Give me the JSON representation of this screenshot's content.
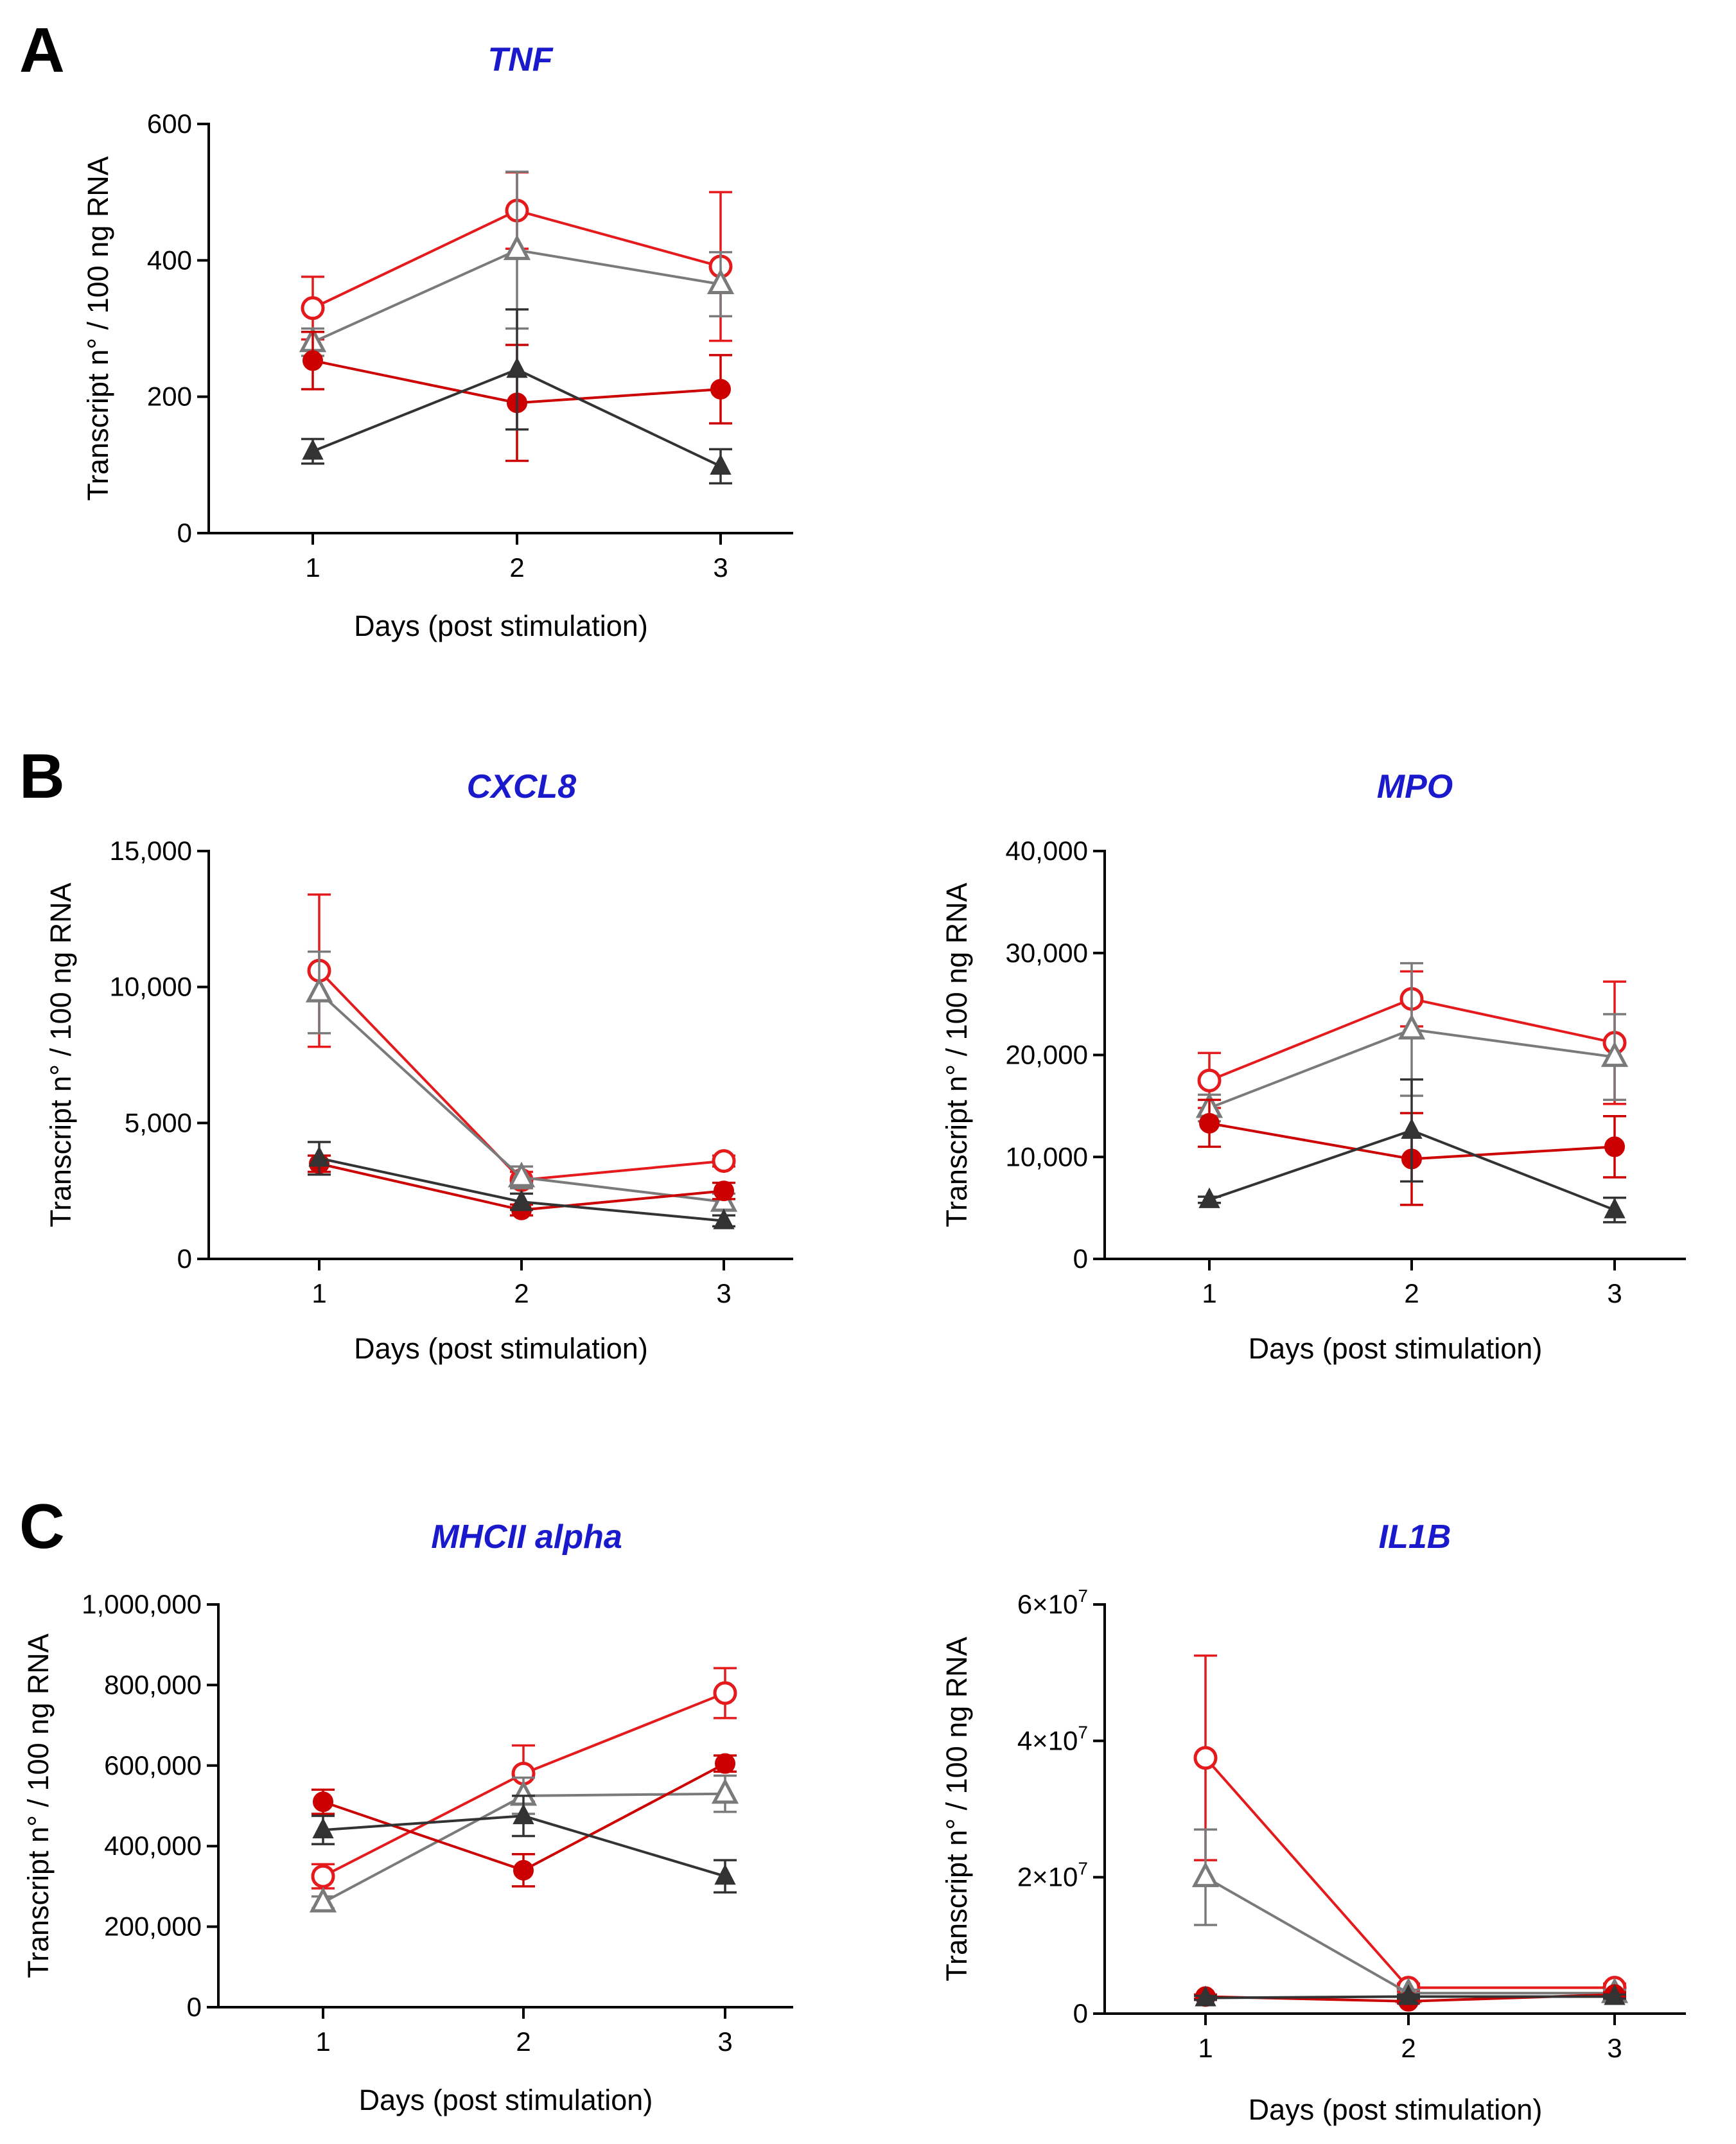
{
  "panels": {
    "A": "A",
    "B": "B",
    "C": "C"
  },
  "colors": {
    "red": "#e41a1c",
    "red_dark": "#cc0000",
    "gray": "#7a7a7a",
    "dark": "#333333"
  },
  "chart_data": [
    {
      "id": "tnf",
      "panel": "A",
      "type": "line",
      "title": "TNF",
      "xlabel": "Days (post stimulation)",
      "ylabel": "Transcript n° / 100 ng RNA",
      "categories": [
        "1",
        "2",
        "3"
      ],
      "ylim": [
        0,
        600
      ],
      "yticks": [
        0,
        200,
        400,
        600
      ],
      "ytick_labels": [
        "0",
        "200",
        "400",
        "600"
      ],
      "series": [
        {
          "name": "red-open-circle",
          "color": "red",
          "marker": "circle-open",
          "values": [
            330,
            473,
            391
          ],
          "errors": [
            46,
            56,
            109
          ]
        },
        {
          "name": "gray-open-triangle",
          "color": "gray",
          "marker": "triangle-open",
          "values": [
            280,
            415,
            365
          ],
          "errors": [
            20,
            115,
            47
          ]
        },
        {
          "name": "red-filled-circle",
          "color": "red_dark",
          "marker": "circle-filled",
          "values": [
            253,
            191,
            211
          ],
          "errors": [
            42,
            85,
            50
          ]
        },
        {
          "name": "dark-filled-triangle",
          "color": "dark",
          "marker": "triangle-filled",
          "values": [
            120,
            240,
            98
          ],
          "errors": [
            18,
            88,
            25
          ]
        }
      ]
    },
    {
      "id": "cxcl8",
      "panel": "B",
      "type": "line",
      "title": "CXCL8",
      "xlabel": "Days (post stimulation)",
      "ylabel": "Transcript n° / 100 ng RNA",
      "categories": [
        "1",
        "2",
        "3"
      ],
      "ylim": [
        0,
        15000
      ],
      "yticks": [
        0,
        5000,
        10000,
        15000
      ],
      "ytick_labels": [
        "0",
        "5,000",
        "10,000",
        "15,000"
      ],
      "series": [
        {
          "name": "red-open-circle",
          "color": "red",
          "marker": "circle-open",
          "values": [
            10600,
            2900,
            3600
          ],
          "errors": [
            2800,
            300,
            200
          ]
        },
        {
          "name": "gray-open-triangle",
          "color": "gray",
          "marker": "triangle-open",
          "values": [
            9800,
            3000,
            2100
          ],
          "errors": [
            1500,
            400,
            300
          ]
        },
        {
          "name": "red-filled-circle",
          "color": "red_dark",
          "marker": "circle-filled",
          "values": [
            3500,
            1800,
            2500
          ],
          "errors": [
            300,
            200,
            300
          ]
        },
        {
          "name": "dark-filled-triangle",
          "color": "dark",
          "marker": "triangle-filled",
          "values": [
            3700,
            2100,
            1400
          ],
          "errors": [
            600,
            300,
            200
          ]
        }
      ]
    },
    {
      "id": "mpo",
      "panel": "B",
      "type": "line",
      "title": "MPO",
      "xlabel": "Days (post stimulation)",
      "ylabel": "Transcript n° / 100 ng RNA",
      "categories": [
        "1",
        "2",
        "3"
      ],
      "ylim": [
        0,
        40000
      ],
      "yticks": [
        0,
        10000,
        20000,
        30000,
        40000
      ],
      "ytick_labels": [
        "0",
        "10,000",
        "20,000",
        "30,000",
        "40,000"
      ],
      "series": [
        {
          "name": "red-open-circle",
          "color": "red",
          "marker": "circle-open",
          "values": [
            17500,
            25500,
            21200
          ],
          "errors": [
            2700,
            2700,
            6000
          ]
        },
        {
          "name": "gray-open-triangle",
          "color": "gray",
          "marker": "triangle-open",
          "values": [
            14800,
            22500,
            19800
          ],
          "errors": [
            1300,
            6500,
            4200
          ]
        },
        {
          "name": "red-filled-circle",
          "color": "red_dark",
          "marker": "circle-filled",
          "values": [
            13300,
            9800,
            11000
          ],
          "errors": [
            2300,
            4500,
            3000
          ]
        },
        {
          "name": "dark-filled-triangle",
          "color": "dark",
          "marker": "triangle-filled",
          "values": [
            5800,
            12600,
            4800
          ],
          "errors": [
            300,
            5000,
            1200
          ]
        }
      ]
    },
    {
      "id": "mhcii",
      "panel": "C",
      "type": "line",
      "title": "MHCII alpha",
      "xlabel": "Days (post stimulation)",
      "ylabel": "Transcript n° / 100 ng RNA",
      "categories": [
        "1",
        "2",
        "3"
      ],
      "ylim": [
        0,
        1000000
      ],
      "yticks": [
        0,
        200000,
        400000,
        600000,
        800000,
        1000000
      ],
      "ytick_labels": [
        "0",
        "200,000",
        "400,000",
        "600,000",
        "800,000",
        "1,000,000"
      ],
      "series": [
        {
          "name": "red-open-circle",
          "color": "red",
          "marker": "circle-open",
          "values": [
            325000,
            580000,
            780000
          ],
          "errors": [
            30000,
            70000,
            62000
          ]
        },
        {
          "name": "gray-open-triangle",
          "color": "gray",
          "marker": "triangle-open",
          "values": [
            260000,
            525000,
            530000
          ],
          "errors": [
            15000,
            45000,
            45000
          ]
        },
        {
          "name": "red-filled-circle",
          "color": "red_dark",
          "marker": "circle-filled",
          "values": [
            510000,
            340000,
            605000
          ],
          "errors": [
            30000,
            40000,
            20000
          ]
        },
        {
          "name": "dark-filled-triangle",
          "color": "dark",
          "marker": "triangle-filled",
          "values": [
            440000,
            475000,
            325000
          ],
          "errors": [
            35000,
            50000,
            40000
          ]
        }
      ]
    },
    {
      "id": "il1b",
      "panel": "C",
      "type": "line",
      "title": "IL1B",
      "xlabel": "Days (post stimulation)",
      "ylabel": "Transcript n° / 100 ng RNA",
      "categories": [
        "1",
        "2",
        "3"
      ],
      "ylim": [
        0,
        60000000
      ],
      "yticks": [
        0,
        20000000,
        40000000,
        60000000
      ],
      "ytick_labels": [
        "0",
        "2×10",
        "4×10",
        "6×10"
      ],
      "ytick_exponent": "7",
      "series": [
        {
          "name": "red-open-circle",
          "color": "red",
          "marker": "circle-open",
          "values": [
            37500000,
            3800000,
            3800000
          ],
          "errors": [
            15000000,
            600000,
            600000
          ]
        },
        {
          "name": "gray-open-triangle",
          "color": "gray",
          "marker": "triangle-open",
          "values": [
            20000000,
            3000000,
            3000000
          ],
          "errors": [
            7000000,
            500000,
            500000
          ]
        },
        {
          "name": "red-filled-circle",
          "color": "red_dark",
          "marker": "circle-filled",
          "values": [
            2500000,
            1800000,
            2800000
          ],
          "errors": [
            300000,
            300000,
            300000
          ]
        },
        {
          "name": "dark-filled-triangle",
          "color": "dark",
          "marker": "triangle-filled",
          "values": [
            2300000,
            2500000,
            2500000
          ],
          "errors": [
            300000,
            300000,
            300000
          ]
        }
      ]
    }
  ]
}
